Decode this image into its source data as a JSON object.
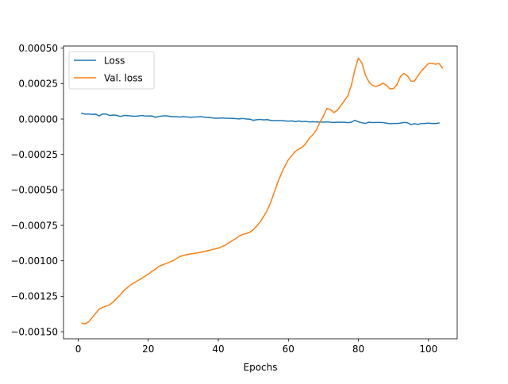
{
  "chart_data": {
    "type": "line",
    "title": "",
    "xlabel": "Epochs",
    "ylabel": "",
    "xlim": [
      -4.2,
      108.2
    ],
    "ylim": [
      -0.00155,
      0.000515
    ],
    "xticks": [
      0,
      20,
      40,
      60,
      80,
      100
    ],
    "yticks": [
      -0.0015,
      -0.00125,
      -0.001,
      -0.00075,
      -0.0005,
      -0.00025,
      0.0,
      0.00025,
      0.0005
    ],
    "xtick_labels": [
      "0",
      "20",
      "40",
      "60",
      "80",
      "100"
    ],
    "ytick_labels": [
      "−0.00150",
      "−0.00125",
      "−0.00100",
      "−0.00075",
      "−0.00050",
      "−0.00025",
      "0.00000",
      "0.00025",
      "0.00050"
    ],
    "grid": false,
    "legend_position": "upper-left",
    "series": [
      {
        "name": "Loss",
        "color": "#1f77b4",
        "points": [
          [
            1,
            4e-05
          ],
          [
            2,
            3.5e-05
          ],
          [
            3,
            3.5e-05
          ],
          [
            4,
            3.3e-05
          ],
          [
            5,
            3.4e-05
          ],
          [
            6,
            2.2e-05
          ],
          [
            7,
            3.6e-05
          ],
          [
            8,
            3.5e-05
          ],
          [
            9,
            2.5e-05
          ],
          [
            10,
            2.8e-05
          ],
          [
            11,
            2.6e-05
          ],
          [
            12,
            1.8e-05
          ],
          [
            13,
            2.5e-05
          ],
          [
            14,
            2.4e-05
          ],
          [
            15,
            2.2e-05
          ],
          [
            16,
            2e-05
          ],
          [
            17,
            2.1e-05
          ],
          [
            18,
            2.5e-05
          ],
          [
            19,
            2.2e-05
          ],
          [
            20,
            2.1e-05
          ],
          [
            21,
            2.2e-05
          ],
          [
            22,
            1.2e-05
          ],
          [
            23,
            1.8e-05
          ],
          [
            24,
            2.1e-05
          ],
          [
            25,
            2.3e-05
          ],
          [
            26,
            2e-05
          ],
          [
            27,
            1.6e-05
          ],
          [
            28,
            1.6e-05
          ],
          [
            29,
            1.4e-05
          ],
          [
            30,
            1.7e-05
          ],
          [
            31,
            1.5e-05
          ],
          [
            32,
            1.2e-05
          ],
          [
            33,
            1.4e-05
          ],
          [
            34,
            1.5e-05
          ],
          [
            35,
            1.7e-05
          ],
          [
            36,
            1.3e-05
          ],
          [
            37,
            1.1e-05
          ],
          [
            38,
            9e-06
          ],
          [
            39,
            6e-06
          ],
          [
            40,
            6e-06
          ],
          [
            41,
            8e-06
          ],
          [
            42,
            6e-06
          ],
          [
            43,
            5e-06
          ],
          [
            44,
            4e-06
          ],
          [
            45,
            3e-06
          ],
          [
            46,
            1e-06
          ],
          [
            47,
            4e-06
          ],
          [
            48,
            0.0
          ],
          [
            49,
            -1e-06
          ],
          [
            50,
            -9e-06
          ],
          [
            51,
            -5e-06
          ],
          [
            52,
            -3e-06
          ],
          [
            53,
            -6e-06
          ],
          [
            54,
            -4e-06
          ],
          [
            55,
            -1e-05
          ],
          [
            56,
            -1.2e-05
          ],
          [
            57,
            -1.1e-05
          ],
          [
            58,
            -1.1e-05
          ],
          [
            59,
            -1.3e-05
          ],
          [
            60,
            -1.5e-05
          ],
          [
            61,
            -1.3e-05
          ],
          [
            62,
            -1.8e-05
          ],
          [
            63,
            -1.4e-05
          ],
          [
            64,
            -1.9e-05
          ],
          [
            65,
            -1.7e-05
          ],
          [
            66,
            -2.1e-05
          ],
          [
            67,
            -1.9e-05
          ],
          [
            68,
            -2.1e-05
          ],
          [
            69,
            -2.1e-05
          ],
          [
            70,
            -2.2e-05
          ],
          [
            71,
            -2e-05
          ],
          [
            72,
            -2.2e-05
          ],
          [
            73,
            -2.4e-05
          ],
          [
            74,
            -2.2e-05
          ],
          [
            75,
            -2.3e-05
          ],
          [
            76,
            -2.3e-05
          ],
          [
            77,
            -2.6e-05
          ],
          [
            78,
            -2.2e-05
          ],
          [
            79,
            -9e-06
          ],
          [
            80,
            -2e-05
          ],
          [
            81,
            -2.6e-05
          ],
          [
            82,
            -3.1e-05
          ],
          [
            83,
            -2.2e-05
          ],
          [
            84,
            -2.5e-05
          ],
          [
            85,
            -2.4e-05
          ],
          [
            86,
            -2.4e-05
          ],
          [
            87,
            -2.5e-05
          ],
          [
            88,
            -2.9e-05
          ],
          [
            89,
            -3.3e-05
          ],
          [
            90,
            -3.1e-05
          ],
          [
            91,
            -3.1e-05
          ],
          [
            92,
            -2.9e-05
          ],
          [
            93,
            -2.4e-05
          ],
          [
            94,
            -2.6e-05
          ],
          [
            95,
            -3.9e-05
          ],
          [
            96,
            -3.3e-05
          ],
          [
            97,
            -3.8e-05
          ],
          [
            98,
            -3.1e-05
          ],
          [
            99,
            -3.1e-05
          ],
          [
            100,
            -2.9e-05
          ],
          [
            101,
            -3.1e-05
          ],
          [
            102,
            -3.2e-05
          ],
          [
            103,
            -2.8e-05
          ]
        ]
      },
      {
        "name": "Val. loss",
        "color": "#ff7f0e",
        "points": [
          [
            1,
            -0.00144
          ],
          [
            2,
            -0.001445
          ],
          [
            3,
            -0.00143
          ],
          [
            4,
            -0.0014
          ],
          [
            5,
            -0.00137
          ],
          [
            6,
            -0.00134
          ],
          [
            7,
            -0.001328
          ],
          [
            8,
            -0.00132
          ],
          [
            9,
            -0.00131
          ],
          [
            10,
            -0.00129
          ],
          [
            11,
            -0.001265
          ],
          [
            12,
            -0.00124
          ],
          [
            13,
            -0.00121
          ],
          [
            14,
            -0.00119
          ],
          [
            15,
            -0.00117
          ],
          [
            16,
            -0.001155
          ],
          [
            17,
            -0.00114
          ],
          [
            18,
            -0.001125
          ],
          [
            19,
            -0.00111
          ],
          [
            20,
            -0.001095
          ],
          [
            21,
            -0.001075
          ],
          [
            22,
            -0.00106
          ],
          [
            23,
            -0.00104
          ],
          [
            24,
            -0.00103
          ],
          [
            25,
            -0.00102
          ],
          [
            26,
            -0.00101
          ],
          [
            27,
            -0.001
          ],
          [
            28,
            -0.000985
          ],
          [
            29,
            -0.00097
          ],
          [
            30,
            -0.000963
          ],
          [
            31,
            -0.000957
          ],
          [
            32,
            -0.000952
          ],
          [
            33,
            -0.000948
          ],
          [
            34,
            -0.000945
          ],
          [
            35,
            -0.00094
          ],
          [
            36,
            -0.000935
          ],
          [
            37,
            -0.000928
          ],
          [
            38,
            -0.000923
          ],
          [
            39,
            -0.000916
          ],
          [
            40,
            -0.00091
          ],
          [
            41,
            -0.0009
          ],
          [
            42,
            -0.00089
          ],
          [
            43,
            -0.000873
          ],
          [
            44,
            -0.000858
          ],
          [
            45,
            -0.000843
          ],
          [
            46,
            -0.000825
          ],
          [
            47,
            -0.000813
          ],
          [
            48,
            -0.000808
          ],
          [
            49,
            -0.000798
          ],
          [
            50,
            -0.00078
          ],
          [
            51,
            -0.000755
          ],
          [
            52,
            -0.000724
          ],
          [
            53,
            -0.000685
          ],
          [
            54,
            -0.000642
          ],
          [
            55,
            -0.000585
          ],
          [
            56,
            -0.000515
          ],
          [
            57,
            -0.000445
          ],
          [
            58,
            -0.000385
          ],
          [
            59,
            -0.000332
          ],
          [
            60,
            -0.000287
          ],
          [
            61,
            -0.000257
          ],
          [
            62,
            -0.000228
          ],
          [
            63,
            -0.000212
          ],
          [
            64,
            -0.000197
          ],
          [
            65,
            -0.000173
          ],
          [
            66,
            -0.000135
          ],
          [
            67,
            -0.00011
          ],
          [
            68,
            -7.8e-05
          ],
          [
            69,
            -2.2e-05
          ],
          [
            70,
            2e-05
          ],
          [
            71,
            7.5e-05
          ],
          [
            72,
            6.7e-05
          ],
          [
            73,
            4.5e-05
          ],
          [
            74,
            6.3e-05
          ],
          [
            75,
            9.5e-05
          ],
          [
            76,
            0.00013
          ],
          [
            77,
            0.000165
          ],
          [
            78,
            0.00024
          ],
          [
            79,
            0.00035
          ],
          [
            80,
            0.00043
          ],
          [
            81,
            0.000395
          ],
          [
            82,
            0.00031
          ],
          [
            83,
            0.000262
          ],
          [
            84,
            0.000237
          ],
          [
            85,
            0.00023
          ],
          [
            86,
            0.000238
          ],
          [
            87,
            0.000253
          ],
          [
            88,
            0.000238
          ],
          [
            89,
            0.000213
          ],
          [
            90,
            0.000215
          ],
          [
            91,
            0.000242
          ],
          [
            92,
            0.0003
          ],
          [
            93,
            0.000322
          ],
          [
            94,
            0.000305
          ],
          [
            95,
            0.000267
          ],
          [
            96,
            0.000268
          ],
          [
            97,
            0.000306
          ],
          [
            98,
            0.00034
          ],
          [
            99,
            0.000365
          ],
          [
            100,
            0.000392
          ],
          [
            101,
            0.000392
          ],
          [
            102,
            0.000387
          ],
          [
            103,
            0.000392
          ],
          [
            104,
            0.00036
          ]
        ]
      }
    ]
  }
}
